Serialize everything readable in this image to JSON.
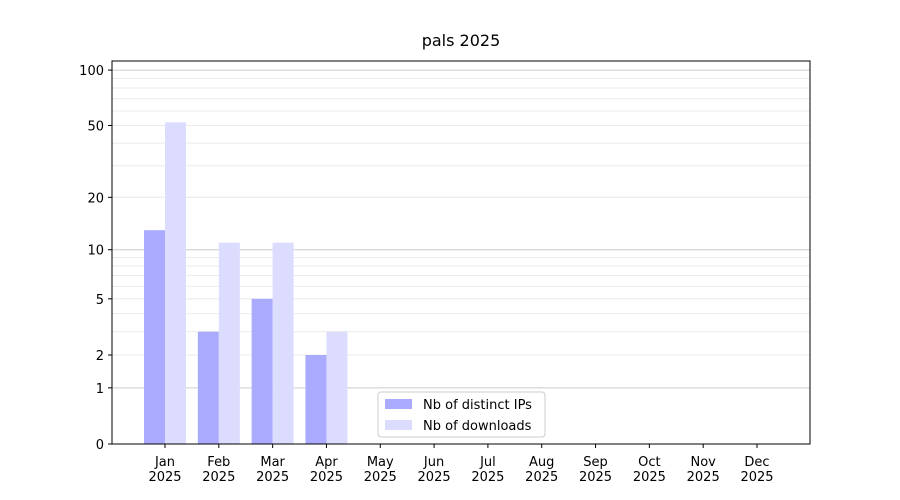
{
  "chart_data": {
    "type": "bar",
    "title": "pals 2025",
    "categories": [
      "Jan\n2025",
      "Feb\n2025",
      "Mar\n2025",
      "Apr\n2025",
      "May\n2025",
      "Jun\n2025",
      "Jul\n2025",
      "Aug\n2025",
      "Sep\n2025",
      "Oct\n2025",
      "Nov\n2025",
      "Dec\n2025"
    ],
    "series": [
      {
        "name": "Nb of distinct IPs",
        "color": "#aaaaff",
        "values": [
          13,
          3,
          5,
          2,
          0,
          0,
          0,
          0,
          0,
          0,
          0,
          0
        ]
      },
      {
        "name": "Nb of downloads",
        "color": "#dcdcff",
        "values": [
          52,
          11,
          11,
          3,
          0,
          0,
          0,
          0,
          0,
          0,
          0,
          0
        ]
      }
    ],
    "yscale": "log1p",
    "ylim": [
      0,
      112
    ],
    "yticks": [
      0,
      1,
      2,
      5,
      10,
      20,
      50,
      100
    ],
    "minor_yticks": [
      2,
      3,
      4,
      5,
      6,
      7,
      8,
      9,
      20,
      30,
      40,
      50,
      60,
      70,
      80,
      90
    ],
    "grid": true,
    "legend": "lower center"
  }
}
